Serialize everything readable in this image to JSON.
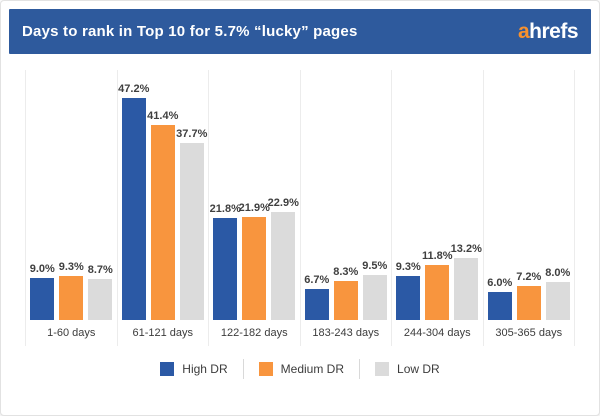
{
  "header": {
    "title": "Days to rank in Top 10 for 5.7% “lucky” pages",
    "logo_prefix": "a",
    "logo_rest": "hrefs",
    "background_color": "#2e5a9d",
    "logo_accent_color": "#f7912e"
  },
  "chart_data": {
    "type": "bar",
    "title": "Days to rank in Top 10 for 5.7% “lucky” pages",
    "categories": [
      "1-60 days",
      "61-121 days",
      "122-182 days",
      "183-243 days",
      "244-304 days",
      "305-365 days"
    ],
    "series": [
      {
        "name": "High DR",
        "color": "#2b59a5",
        "values": [
          9.0,
          47.2,
          21.8,
          6.7,
          9.3,
          6.0
        ]
      },
      {
        "name": "Medium DR",
        "color": "#f8953e",
        "values": [
          9.3,
          41.4,
          21.9,
          8.3,
          11.8,
          7.2
        ]
      },
      {
        "name": "Low DR",
        "color": "#dbdbdb",
        "values": [
          8.7,
          37.7,
          22.9,
          9.5,
          13.2,
          8.0
        ]
      }
    ],
    "value_suffix": "%",
    "ylim": [
      0,
      50
    ],
    "grid": "vertical group dividers only",
    "legend_position": "bottom-center",
    "value_labels": "above each bar, one decimal place"
  }
}
